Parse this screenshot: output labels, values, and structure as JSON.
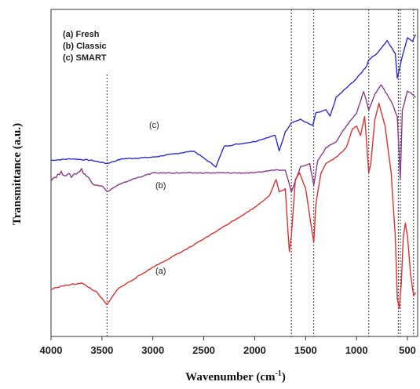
{
  "chart_data": {
    "type": "line",
    "xlabel": "Wavenumber (cm",
    "xlabel_sup": "-1",
    "xlabel_tail": ")",
    "ylabel": "Transmittance (a.u.)",
    "xlim": [
      4000,
      400
    ],
    "x_ticks": [
      4000,
      3500,
      3000,
      2500,
      2000,
      1500,
      1000,
      500
    ],
    "x_tick_labels": [
      "4000",
      "3500",
      "3000",
      "2500",
      "2000",
      "1500",
      "1000",
      "500"
    ],
    "grid": false,
    "legend_position": "top-left",
    "legend_entries": [
      "(a) Fresh",
      "(b) Classic",
      "(c) SMART"
    ],
    "reference_lines": [
      3450,
      1640,
      1420,
      880,
      590,
      570,
      440
    ],
    "series": [
      {
        "name": "(c)",
        "tag": "(c)",
        "color": "#2b2bd6",
        "x": [
          4000,
          3800,
          3600,
          3450,
          3300,
          3000,
          2600,
          2380,
          2300,
          2000,
          1800,
          1760,
          1700,
          1640,
          1550,
          1430,
          1400,
          1300,
          1260,
          1200,
          1100,
          1000,
          900,
          880,
          800,
          700,
          620,
          600,
          560,
          500,
          450,
          420
        ],
        "y": [
          0.34,
          0.345,
          0.34,
          0.33,
          0.345,
          0.35,
          0.37,
          0.32,
          0.385,
          0.4,
          0.42,
          0.37,
          0.43,
          0.46,
          0.47,
          0.45,
          0.49,
          0.5,
          0.48,
          0.54,
          0.57,
          0.6,
          0.64,
          0.66,
          0.68,
          0.72,
          0.68,
          0.6,
          0.66,
          0.73,
          0.72,
          0.74
        ]
      },
      {
        "name": "(b)",
        "tag": "(b)",
        "color": "#8b3a8f",
        "x": [
          4000,
          3900,
          3800,
          3700,
          3600,
          3500,
          3450,
          3350,
          3200,
          3000,
          2500,
          2200,
          2000,
          1800,
          1700,
          1640,
          1550,
          1460,
          1420,
          1380,
          1300,
          1200,
          1100,
          1000,
          930,
          880,
          820,
          760,
          700,
          650,
          600,
          570,
          550,
          500,
          450,
          420
        ],
        "y": [
          0.28,
          0.3,
          0.29,
          0.31,
          0.27,
          0.26,
          0.24,
          0.26,
          0.28,
          0.3,
          0.3,
          0.3,
          0.3,
          0.31,
          0.31,
          0.24,
          0.32,
          0.33,
          0.26,
          0.34,
          0.38,
          0.4,
          0.45,
          0.49,
          0.56,
          0.5,
          0.55,
          0.58,
          0.55,
          0.52,
          0.48,
          0.28,
          0.5,
          0.56,
          0.55,
          0.54
        ]
      },
      {
        "name": "(a)",
        "tag": "(a)",
        "color": "#e03030",
        "x": [
          4000,
          3900,
          3700,
          3550,
          3450,
          3350,
          3200,
          3000,
          2600,
          2200,
          2000,
          1850,
          1790,
          1760,
          1700,
          1660,
          1640,
          1600,
          1560,
          1500,
          1440,
          1420,
          1400,
          1350,
          1300,
          1200,
          1100,
          1040,
          1000,
          960,
          920,
          880,
          860,
          820,
          780,
          720,
          660,
          620,
          600,
          580,
          560,
          540,
          520,
          500,
          470,
          440,
          420
        ],
        "y": [
          -0.07,
          -0.06,
          -0.05,
          -0.08,
          -0.12,
          -0.07,
          -0.04,
          0.0,
          0.07,
          0.15,
          0.19,
          0.23,
          0.28,
          0.24,
          0.25,
          0.05,
          0.1,
          0.28,
          0.3,
          0.25,
          0.12,
          0.08,
          0.2,
          0.3,
          0.33,
          0.35,
          0.38,
          0.44,
          0.45,
          0.42,
          0.48,
          0.3,
          0.33,
          0.47,
          0.52,
          0.45,
          0.3,
          0.1,
          -0.1,
          -0.13,
          -0.05,
          0.1,
          0.14,
          0.1,
          -0.02,
          -0.09,
          -0.08
        ]
      }
    ]
  },
  "colors": {
    "frame": "#333333",
    "reference_line": "#333333"
  }
}
